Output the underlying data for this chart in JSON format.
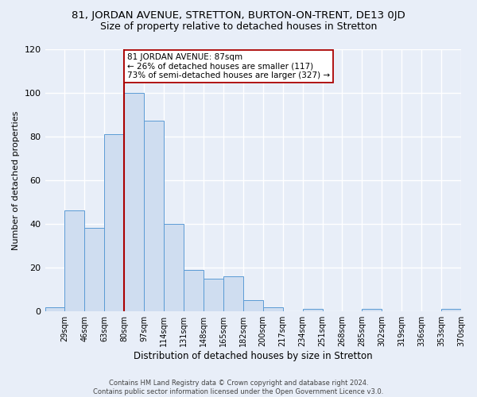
{
  "title": "81, JORDAN AVENUE, STRETTON, BURTON-ON-TRENT, DE13 0JD",
  "subtitle": "Size of property relative to detached houses in Stretton",
  "xlabel": "Distribution of detached houses by size in Stretton",
  "ylabel": "Number of detached properties",
  "bin_labels": [
    "29sqm",
    "46sqm",
    "63sqm",
    "80sqm",
    "97sqm",
    "114sqm",
    "131sqm",
    "148sqm",
    "165sqm",
    "182sqm",
    "200sqm",
    "217sqm",
    "234sqm",
    "251sqm",
    "268sqm",
    "285sqm",
    "302sqm",
    "319sqm",
    "336sqm",
    "353sqm",
    "370sqm"
  ],
  "bar_values": [
    2,
    46,
    38,
    81,
    100,
    87,
    40,
    19,
    15,
    16,
    5,
    2,
    0,
    1,
    0,
    0,
    1,
    0,
    0,
    0,
    1
  ],
  "bar_color": "#cfddf0",
  "bar_edge_color": "#5b9bd5",
  "vline_x": 4,
  "vline_color": "#aa0000",
  "annotation_text": "81 JORDAN AVENUE: 87sqm\n← 26% of detached houses are smaller (117)\n73% of semi-detached houses are larger (327) →",
  "annotation_box_color": "#ffffff",
  "annotation_box_edge": "#aa0000",
  "ylim": [
    0,
    120
  ],
  "yticks": [
    0,
    20,
    40,
    60,
    80,
    100,
    120
  ],
  "footer": "Contains HM Land Registry data © Crown copyright and database right 2024.\nContains public sector information licensed under the Open Government Licence v3.0.",
  "bg_color": "#e8eef8",
  "grid_color": "#ffffff",
  "title_fontsize": 9.5,
  "subtitle_fontsize": 9
}
